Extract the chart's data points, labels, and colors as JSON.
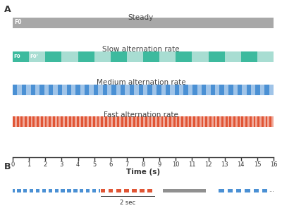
{
  "title_A": "A",
  "title_B": "B",
  "steady_label": "Steady",
  "steady_color": "#a8a8a8",
  "steady_bar_label": "F0",
  "slow_label": "Slow alternation rate",
  "slow_color1": "#3dba9e",
  "slow_color2": "#a8ddd2",
  "slow_bar_labels": [
    "F0",
    "F0’"
  ],
  "medium_label": "Medium alternation rate",
  "medium_color1": "#4a90d4",
  "medium_color2": "#a0c4e8",
  "fast_label": "Fast alternation rate",
  "fast_color1": "#e05535",
  "fast_color2": "#f0a898",
  "xmin": 0,
  "xmax": 16,
  "xlabel": "Time (s)",
  "xticks": [
    0,
    1,
    2,
    3,
    4,
    5,
    6,
    7,
    8,
    9,
    10,
    11,
    12,
    13,
    14,
    15,
    16
  ],
  "slow_n_segments": 16,
  "medium_n_segments": 58,
  "fast_n_segments": 130,
  "dot_color_blue": "#4a90d4",
  "dot_color_red": "#e05535",
  "dot_color_gray": "#909090",
  "panel_B_blue1_n": 110,
  "panel_B_red_n": 70,
  "panel_B_blue2_n": 80,
  "panel_B_label": "2 sec",
  "dots_label": "..."
}
